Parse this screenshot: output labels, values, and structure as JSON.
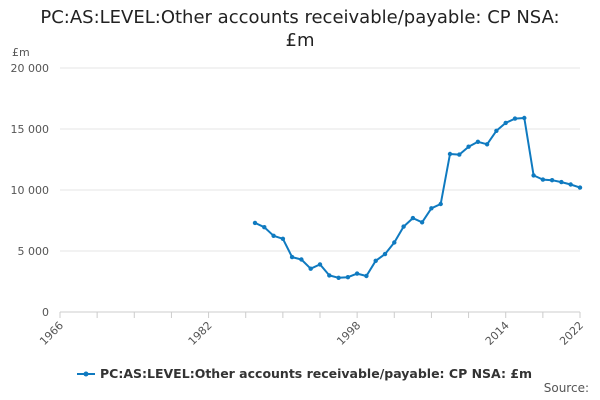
{
  "chart_data": {
    "type": "line",
    "title_line1": "PC:AS:LEVEL:Other accounts receivable/payable: CP NSA:",
    "title_line2": "£m",
    "ylabel": "£m",
    "ylim": [
      0,
      20000
    ],
    "xlim": [
      1966,
      2022
    ],
    "y_ticks": [
      {
        "value": 0,
        "label": "0"
      },
      {
        "value": 5000,
        "label": "5 000"
      },
      {
        "value": 10000,
        "label": "10 000"
      },
      {
        "value": 15000,
        "label": "15 000"
      },
      {
        "value": 20000,
        "label": "20 000"
      }
    ],
    "x_ticks_labeled": [
      {
        "value": 1966,
        "label": "1966"
      },
      {
        "value": 1982,
        "label": "1982"
      },
      {
        "value": 1998,
        "label": "1998"
      },
      {
        "value": 2014,
        "label": "2014"
      },
      {
        "value": 2022,
        "label": "2022"
      }
    ],
    "x_minor_ticks": [
      1970,
      1974,
      1978,
      1986,
      1990,
      1994,
      2002,
      2006,
      2010,
      2018
    ],
    "grid": "horizontal",
    "legend_position": "bottom",
    "series": [
      {
        "name": "PC:AS:LEVEL:Other accounts receivable/payable: CP NSA: £m",
        "color": "#0f7ac0",
        "x": [
          1987,
          1988,
          1989,
          1990,
          1991,
          1992,
          1993,
          1994,
          1995,
          1996,
          1997,
          1998,
          1999,
          2000,
          2001,
          2002,
          2003,
          2004,
          2005,
          2006,
          2007,
          2008,
          2009,
          2010,
          2011,
          2012,
          2013,
          2014,
          2015,
          2016,
          2017,
          2018,
          2019,
          2020,
          2021,
          2022
        ],
        "values": [
          7300,
          6950,
          6250,
          6000,
          4500,
          4300,
          3550,
          3900,
          3000,
          2800,
          2850,
          3150,
          2950,
          4200,
          4750,
          5700,
          7000,
          7700,
          7350,
          8500,
          8850,
          12950,
          12900,
          13550,
          13950,
          13750,
          14850,
          15500,
          15850,
          15900,
          11200,
          10850,
          10800,
          10650,
          10450,
          10200
        ]
      }
    ]
  },
  "legend": {
    "label": "PC:AS:LEVEL:Other accounts receivable/payable: CP NSA: £m"
  },
  "source_label": "Source:"
}
